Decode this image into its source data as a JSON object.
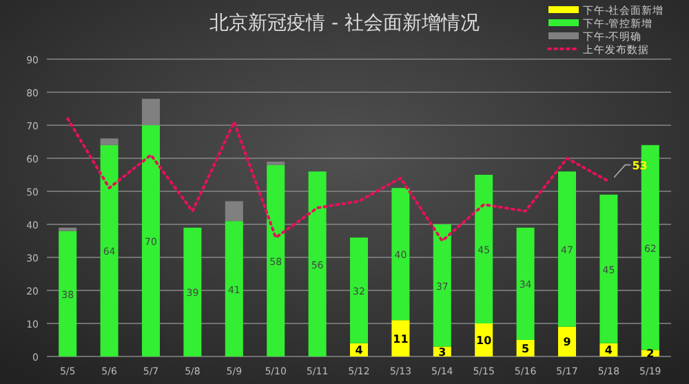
{
  "chart_data": {
    "type": "bar",
    "title": "北京新冠疫情 - 社会面新增情况",
    "categories": [
      "5/5",
      "5/6",
      "5/7",
      "5/8",
      "5/9",
      "5/10",
      "5/11",
      "5/12",
      "5/13",
      "5/14",
      "5/15",
      "5/16",
      "5/17",
      "5/18",
      "5/19"
    ],
    "stacked": true,
    "series": [
      {
        "name": "下午-社会面新增",
        "color": "#ffff00",
        "values": [
          0,
          0,
          0,
          0,
          0,
          0,
          0,
          4,
          11,
          3,
          10,
          5,
          9,
          4,
          2
        ],
        "value_labels": [
          null,
          null,
          null,
          null,
          null,
          null,
          null,
          "4",
          "11",
          "3",
          "10",
          "5",
          "9",
          "4",
          "2"
        ]
      },
      {
        "name": "下午-管控新增",
        "color": "#33ee33",
        "values": [
          38,
          64,
          70,
          39,
          41,
          58,
          56,
          32,
          40,
          37,
          45,
          34,
          47,
          45,
          62
        ],
        "value_labels": [
          "38",
          "64",
          "70",
          "39",
          "41",
          "58",
          "56",
          "32",
          "40",
          "37",
          "45",
          "34",
          "47",
          "45",
          "62"
        ]
      },
      {
        "name": "下午-不明确",
        "color": "#808080",
        "values": [
          1,
          2,
          8,
          0,
          6,
          1,
          0,
          0,
          0,
          0,
          0,
          0,
          0,
          0,
          0
        ]
      },
      {
        "name": "上午发布数据",
        "type": "line",
        "color": "#e8105a",
        "line_style": "dotted",
        "marker": "none",
        "values": [
          72,
          51,
          61,
          44,
          71,
          36,
          45,
          47,
          54,
          35,
          46,
          44,
          60,
          53,
          null
        ],
        "value_labels": [
          null,
          null,
          null,
          null,
          null,
          null,
          null,
          null,
          null,
          null,
          null,
          null,
          null,
          "53",
          null
        ]
      }
    ],
    "ylim": [
      0,
      90
    ],
    "yticks": [
      0,
      10,
      20,
      30,
      40,
      50,
      60,
      70,
      80,
      90
    ],
    "grid": "y",
    "legend": "top right"
  }
}
